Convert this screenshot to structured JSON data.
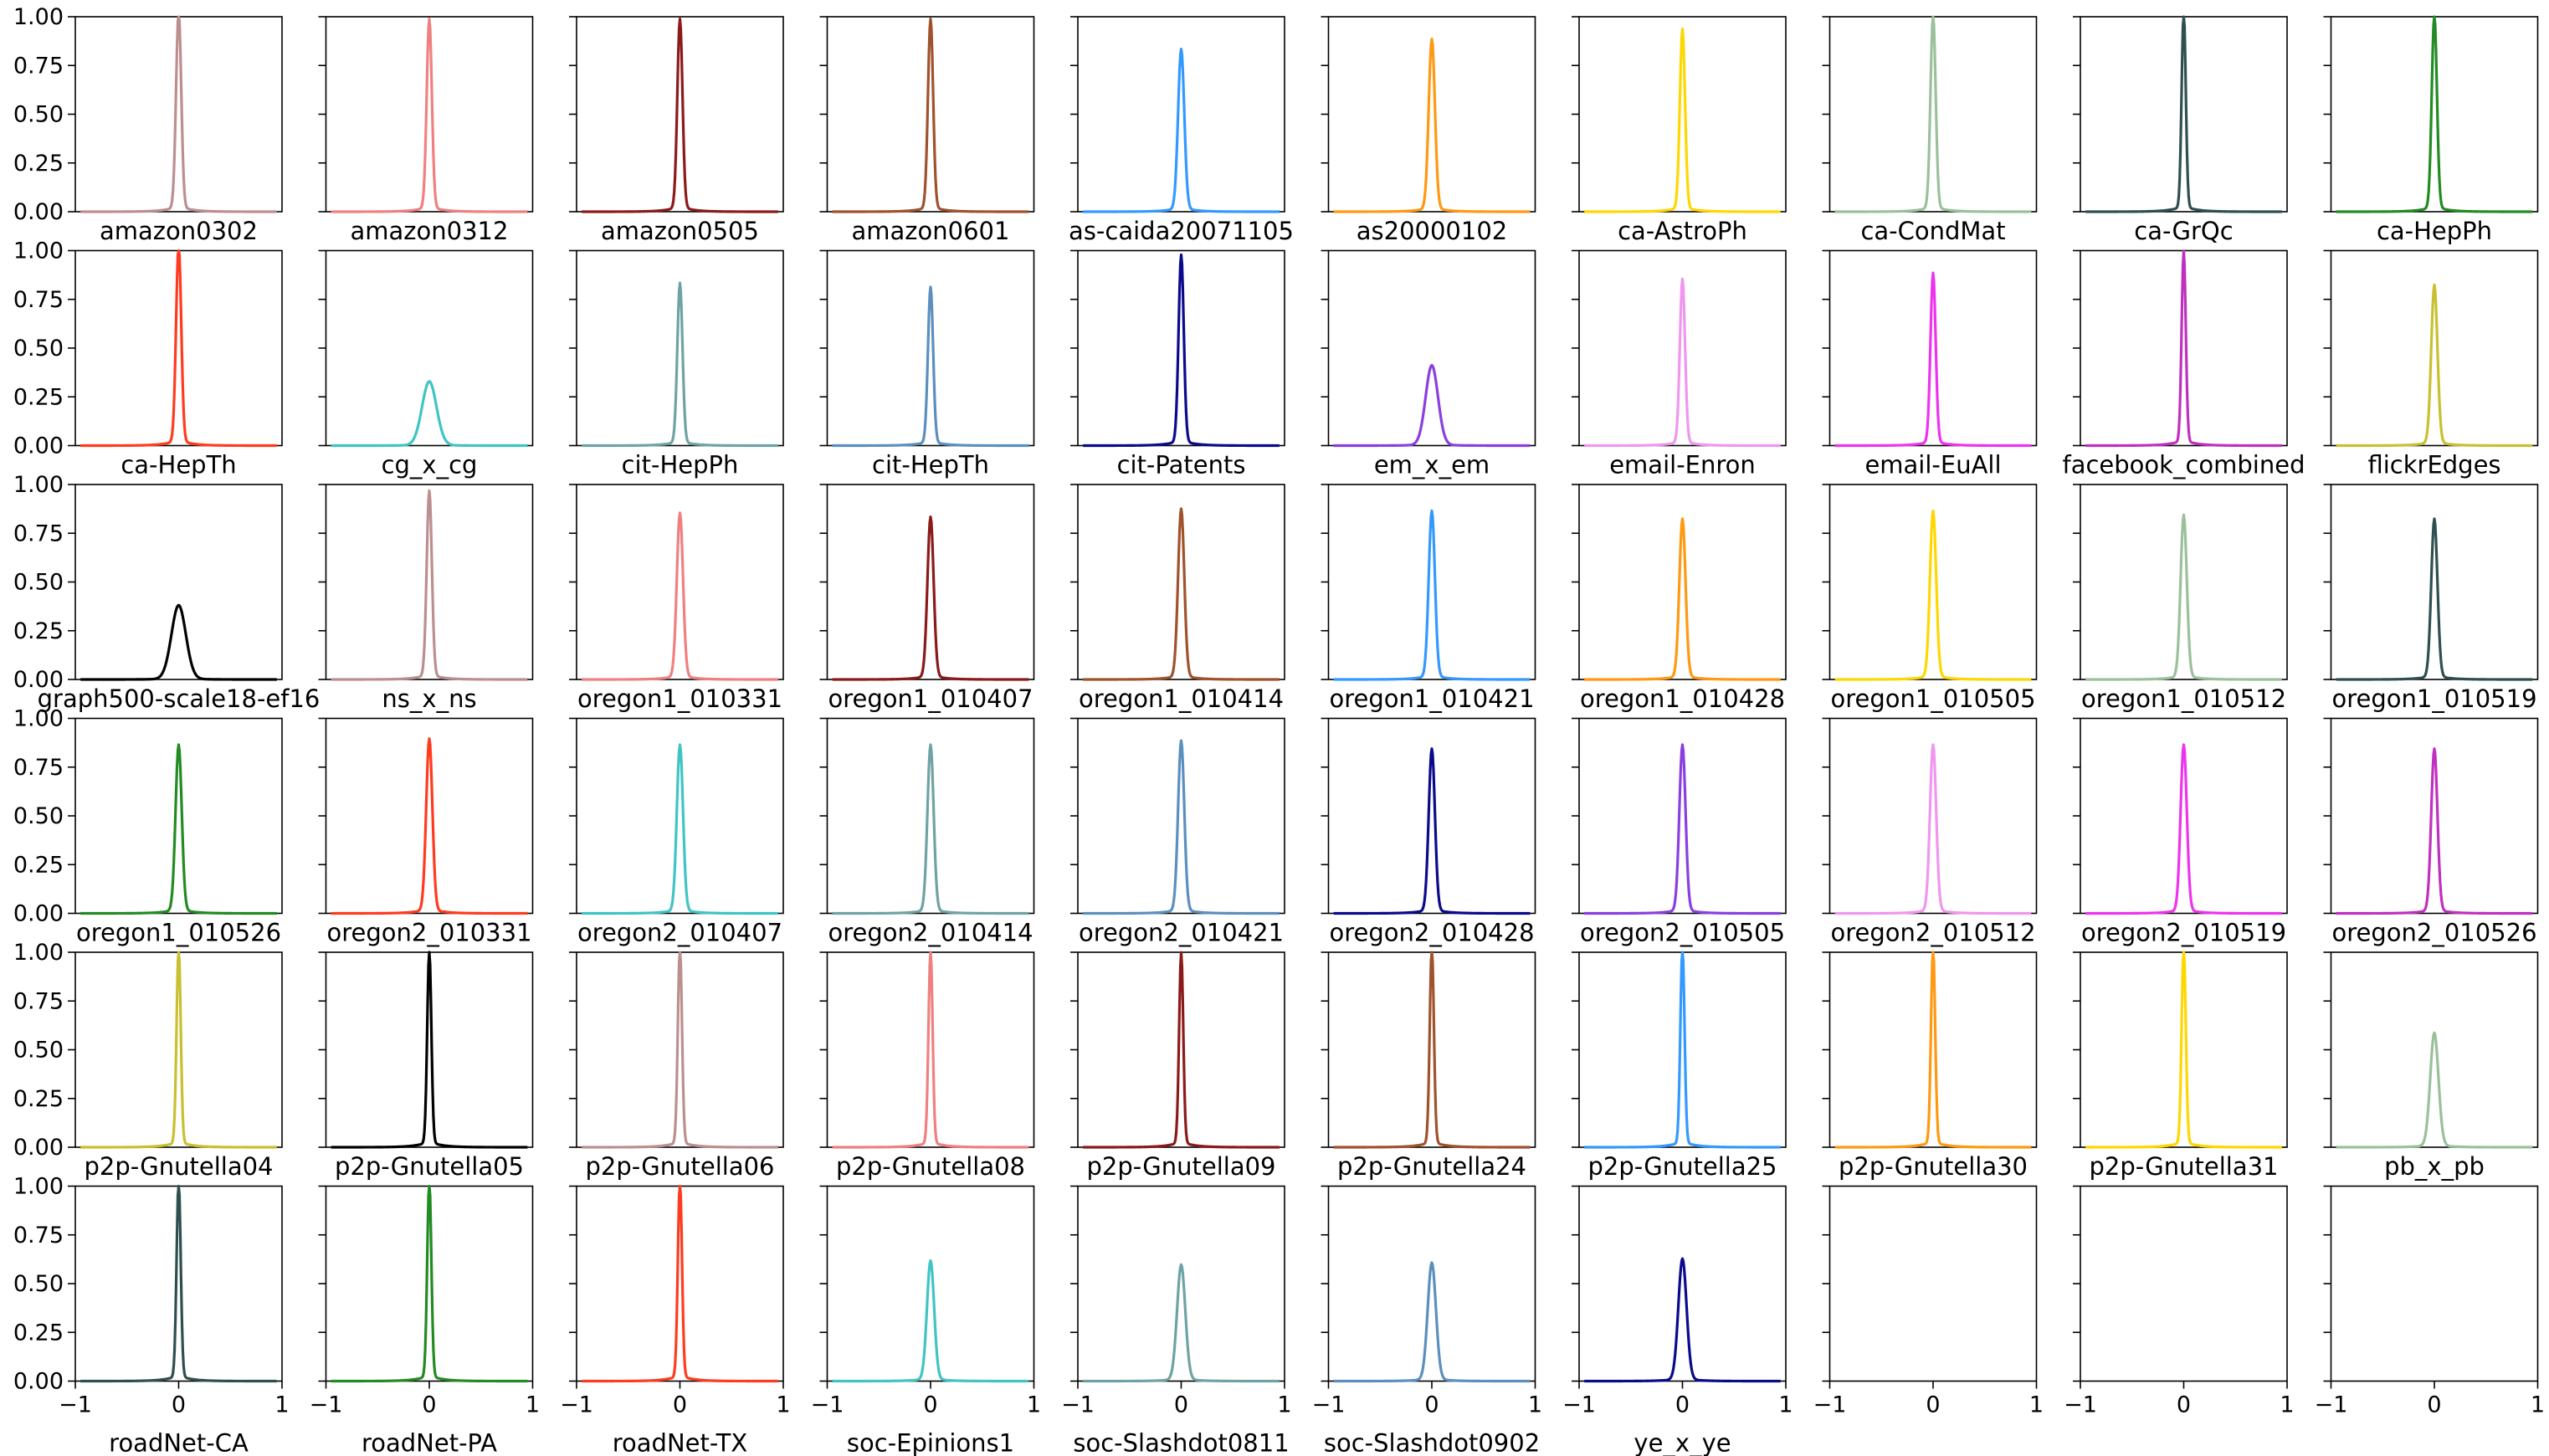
{
  "chart_data": {
    "type": "line",
    "layout": "6x10 grid of small multiples, shared x and y axes",
    "xlim": [
      -1,
      1
    ],
    "ylim": [
      0,
      1
    ],
    "xticks": [
      "−1",
      "0",
      "1"
    ],
    "yticks": [
      "0.00",
      "0.25",
      "0.50",
      "0.75",
      "1.00"
    ],
    "y_tick_labels_on": "first column only",
    "x_tick_labels_on": "bottom row only",
    "grid": false,
    "legend": "none",
    "panels": [
      {
        "title": "amazon0302",
        "color": "#bc8f8f",
        "peak_x": 0,
        "peak_y": 1.0,
        "width": 0.025
      },
      {
        "title": "amazon0312",
        "color": "#f08080",
        "peak_x": 0,
        "peak_y": 0.96,
        "width": 0.025
      },
      {
        "title": "amazon0505",
        "color": "#8b1a1a",
        "peak_x": 0,
        "peak_y": 0.96,
        "width": 0.025
      },
      {
        "title": "amazon0601",
        "color": "#a0522d",
        "peak_x": 0,
        "peak_y": 0.96,
        "width": 0.025
      },
      {
        "title": "as-caida20071105",
        "color": "#3399ff",
        "peak_x": 0,
        "peak_y": 0.81,
        "width": 0.03
      },
      {
        "title": "as20000102",
        "color": "#ff9912",
        "peak_x": 0,
        "peak_y": 0.86,
        "width": 0.03
      },
      {
        "title": "ca-AstroPh",
        "color": "#ffd700",
        "peak_x": 0,
        "peak_y": 0.91,
        "width": 0.025
      },
      {
        "title": "ca-CondMat",
        "color": "#9bc09b",
        "peak_x": 0,
        "peak_y": 0.98,
        "width": 0.025
      },
      {
        "title": "ca-GrQc",
        "color": "#2f4f4f",
        "peak_x": 0,
        "peak_y": 1.0,
        "width": 0.02
      },
      {
        "title": "ca-HepPh",
        "color": "#228b22",
        "peak_x": 0,
        "peak_y": 0.98,
        "width": 0.025
      },
      {
        "title": "ca-HepTh",
        "color": "#ff3b1f",
        "peak_x": 0,
        "peak_y": 1.0,
        "width": 0.025
      },
      {
        "title": "cg_x_cg",
        "color": "#40c4c4",
        "peak_x": 0,
        "peak_y": 0.32,
        "width": 0.07
      },
      {
        "title": "cit-HepPh",
        "color": "#6fa3a3",
        "peak_x": 0,
        "peak_y": 0.81,
        "width": 0.025
      },
      {
        "title": "cit-HepTh",
        "color": "#5b8fbf",
        "peak_x": 0,
        "peak_y": 0.79,
        "width": 0.025
      },
      {
        "title": "cit-Patents",
        "color": "#0a0a8b",
        "peak_x": 0,
        "peak_y": 0.95,
        "width": 0.025
      },
      {
        "title": "em_x_em",
        "color": "#8a3fe0",
        "peak_x": 0,
        "peak_y": 0.4,
        "width": 0.06
      },
      {
        "title": "email-Enron",
        "color": "#f096f0",
        "peak_x": 0,
        "peak_y": 0.83,
        "width": 0.025
      },
      {
        "title": "email-EuAll",
        "color": "#ee33ee",
        "peak_x": 0,
        "peak_y": 0.86,
        "width": 0.025
      },
      {
        "title": "facebook_combined",
        "color": "#c030c0",
        "peak_x": 0,
        "peak_y": 0.97,
        "width": 0.02
      },
      {
        "title": "flickrEdges",
        "color": "#c8c030",
        "peak_x": 0,
        "peak_y": 0.8,
        "width": 0.03
      },
      {
        "title": "graph500-scale18-ef16",
        "color": "#000000",
        "peak_x": 0,
        "peak_y": 0.37,
        "width": 0.07
      },
      {
        "title": "ns_x_ns",
        "color": "#bc8f8f",
        "peak_x": 0,
        "peak_y": 0.94,
        "width": 0.025
      },
      {
        "title": "oregon1_010331",
        "color": "#f08080",
        "peak_x": 0,
        "peak_y": 0.83,
        "width": 0.03
      },
      {
        "title": "oregon1_010407",
        "color": "#8b1a1a",
        "peak_x": 0,
        "peak_y": 0.81,
        "width": 0.03
      },
      {
        "title": "oregon1_010414",
        "color": "#a0522d",
        "peak_x": 0,
        "peak_y": 0.85,
        "width": 0.03
      },
      {
        "title": "oregon1_010421",
        "color": "#3399ff",
        "peak_x": 0,
        "peak_y": 0.84,
        "width": 0.03
      },
      {
        "title": "oregon1_010428",
        "color": "#ff9912",
        "peak_x": 0,
        "peak_y": 0.8,
        "width": 0.03
      },
      {
        "title": "oregon1_010505",
        "color": "#ffd700",
        "peak_x": 0,
        "peak_y": 0.84,
        "width": 0.03
      },
      {
        "title": "oregon1_010512",
        "color": "#9bc09b",
        "peak_x": 0,
        "peak_y": 0.82,
        "width": 0.03
      },
      {
        "title": "oregon1_010519",
        "color": "#2f4f4f",
        "peak_x": 0,
        "peak_y": 0.8,
        "width": 0.03
      },
      {
        "title": "oregon1_010526",
        "color": "#228b22",
        "peak_x": 0,
        "peak_y": 0.84,
        "width": 0.03
      },
      {
        "title": "oregon2_010331",
        "color": "#ff3b1f",
        "peak_x": 0,
        "peak_y": 0.87,
        "width": 0.03
      },
      {
        "title": "oregon2_010407",
        "color": "#40c4c4",
        "peak_x": 0,
        "peak_y": 0.84,
        "width": 0.03
      },
      {
        "title": "oregon2_010414",
        "color": "#6fa3a3",
        "peak_x": 0,
        "peak_y": 0.84,
        "width": 0.03
      },
      {
        "title": "oregon2_010421",
        "color": "#5b8fbf",
        "peak_x": 0,
        "peak_y": 0.86,
        "width": 0.03
      },
      {
        "title": "oregon2_010428",
        "color": "#0a0a8b",
        "peak_x": 0,
        "peak_y": 0.82,
        "width": 0.03
      },
      {
        "title": "oregon2_010505",
        "color": "#8a3fe0",
        "peak_x": 0,
        "peak_y": 0.84,
        "width": 0.03
      },
      {
        "title": "oregon2_010512",
        "color": "#f096f0",
        "peak_x": 0,
        "peak_y": 0.84,
        "width": 0.03
      },
      {
        "title": "oregon2_010519",
        "color": "#ee33ee",
        "peak_x": 0,
        "peak_y": 0.84,
        "width": 0.03
      },
      {
        "title": "oregon2_010526",
        "color": "#c030c0",
        "peak_x": 0,
        "peak_y": 0.82,
        "width": 0.03
      },
      {
        "title": "p2p-Gnutella04",
        "color": "#c8c030",
        "peak_x": 0,
        "peak_y": 1.0,
        "width": 0.02
      },
      {
        "title": "p2p-Gnutella05",
        "color": "#000000",
        "peak_x": 0,
        "peak_y": 0.98,
        "width": 0.02
      },
      {
        "title": "p2p-Gnutella06",
        "color": "#bc8f8f",
        "peak_x": 0,
        "peak_y": 1.0,
        "width": 0.02
      },
      {
        "title": "p2p-Gnutella08",
        "color": "#f08080",
        "peak_x": 0,
        "peak_y": 0.98,
        "width": 0.02
      },
      {
        "title": "p2p-Gnutella09",
        "color": "#8b1a1a",
        "peak_x": 0,
        "peak_y": 0.97,
        "width": 0.02
      },
      {
        "title": "p2p-Gnutella24",
        "color": "#a0522d",
        "peak_x": 0,
        "peak_y": 1.0,
        "width": 0.02
      },
      {
        "title": "p2p-Gnutella25",
        "color": "#3399ff",
        "peak_x": 0,
        "peak_y": 1.0,
        "width": 0.02
      },
      {
        "title": "p2p-Gnutella30",
        "color": "#ff9912",
        "peak_x": 0,
        "peak_y": 1.0,
        "width": 0.02
      },
      {
        "title": "p2p-Gnutella31",
        "color": "#ffd700",
        "peak_x": 0,
        "peak_y": 1.0,
        "width": 0.02
      },
      {
        "title": "pb_x_pb",
        "color": "#9bc09b",
        "peak_x": 0,
        "peak_y": 0.57,
        "width": 0.04
      },
      {
        "title": "roadNet-CA",
        "color": "#2f4f4f",
        "peak_x": 0,
        "peak_y": 1.0,
        "width": 0.02
      },
      {
        "title": "roadNet-PA",
        "color": "#228b22",
        "peak_x": 0,
        "peak_y": 1.0,
        "width": 0.02
      },
      {
        "title": "roadNet-TX",
        "color": "#ff3b1f",
        "peak_x": 0,
        "peak_y": 1.0,
        "width": 0.02
      },
      {
        "title": "soc-Epinions1",
        "color": "#40c4c4",
        "peak_x": 0,
        "peak_y": 0.6,
        "width": 0.035
      },
      {
        "title": "soc-Slashdot0811",
        "color": "#6fa3a3",
        "peak_x": 0,
        "peak_y": 0.58,
        "width": 0.04
      },
      {
        "title": "soc-Slashdot0902",
        "color": "#5b8fbf",
        "peak_x": 0,
        "peak_y": 0.59,
        "width": 0.04
      },
      {
        "title": "ye_x_ye",
        "color": "#0a0a8b",
        "peak_x": 0,
        "peak_y": 0.61,
        "width": 0.04
      },
      {
        "title": "",
        "color": "",
        "empty": true
      },
      {
        "title": "",
        "color": "",
        "empty": true
      },
      {
        "title": "",
        "color": "",
        "empty": true
      }
    ]
  }
}
